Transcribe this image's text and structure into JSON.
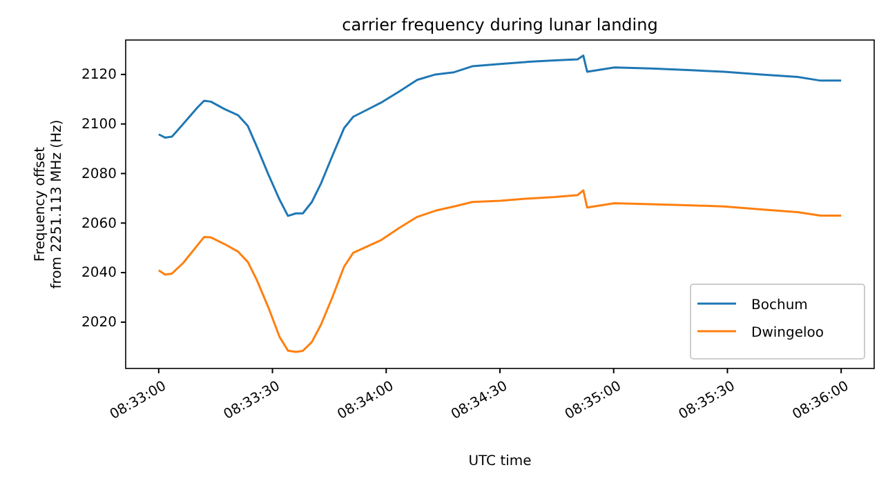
{
  "chart_data": {
    "type": "line",
    "title": "carrier frequency during lunar landing",
    "xlabel": "UTC time",
    "ylabel": "Frequency offset\nfrom 2251.113 MHz (Hz)",
    "x": [
      8.55,
      8.55047,
      8.55097,
      8.55181,
      8.55283,
      8.55333,
      8.55383,
      8.55483,
      8.55583,
      8.55653,
      8.55719,
      8.55803,
      8.55886,
      8.55947,
      8.56006,
      8.56056,
      8.56122,
      8.56189,
      8.56272,
      8.56358,
      8.56425,
      8.56525,
      8.56625,
      8.56761,
      8.56894,
      8.57028,
      8.57164,
      8.57297,
      8.575,
      8.57733,
      8.57903,
      8.58069,
      8.58111,
      8.58139,
      8.58339,
      8.58608,
      8.58875,
      8.59144,
      8.59414,
      8.59681,
      8.5985,
      8.6
    ],
    "series": [
      {
        "name": "Bochum",
        "color": "#1f77b4",
        "values": [
          2095.8,
          2094.5,
          2094.9,
          2100.1,
          2106.6,
          2109.4,
          2109,
          2106,
          2103.5,
          2099.2,
          2090.8,
          2079.7,
          2069.4,
          2062.9,
          2063.9,
          2063.9,
          2068.5,
          2076,
          2087.1,
          2098.3,
          2102.9,
          2105.7,
          2108.5,
          2113.1,
          2117.8,
          2120,
          2120.9,
          2123.3,
          2124.2,
          2125.2,
          2125.7,
          2126.1,
          2127.6,
          2121.1,
          2122.8,
          2122.4,
          2121.8,
          2121.1,
          2120,
          2119,
          2117.5,
          2117.5
        ]
      },
      {
        "name": "Dwingeloo",
        "color": "#ff7f0e",
        "values": [
          2040.9,
          2039.2,
          2039.6,
          2044,
          2051,
          2054.4,
          2054.2,
          2051.5,
          2048.4,
          2044.3,
          2037,
          2026,
          2014,
          2008.5,
          2008,
          2008.4,
          2012,
          2019,
          2030,
          2042.4,
          2048,
          2050.5,
          2053,
          2058,
          2062.5,
          2065,
          2066.7,
          2068.5,
          2069,
          2070,
          2070.5,
          2071.3,
          2073.2,
          2066.3,
          2068,
          2067.6,
          2067.2,
          2066.7,
          2065.5,
          2064.4,
          2063,
          2063
        ]
      }
    ],
    "xlim": [
      8.54758,
      8.60242
    ],
    "xticks": [
      {
        "value": 8.55,
        "label": "08:33:00"
      },
      {
        "value": 8.558333,
        "label": "08:33:30"
      },
      {
        "value": 8.566667,
        "label": "08:34:00"
      },
      {
        "value": 8.575,
        "label": "08:34:30"
      },
      {
        "value": 8.583333,
        "label": "08:35:00"
      },
      {
        "value": 8.591667,
        "label": "08:35:30"
      },
      {
        "value": 8.6,
        "label": "08:36:00"
      }
    ],
    "ylim": [
      2001.3,
      2133.9
    ],
    "yticks": [
      2020,
      2040,
      2060,
      2080,
      2100,
      2120
    ],
    "legend": "bottom right",
    "grid": false
  }
}
